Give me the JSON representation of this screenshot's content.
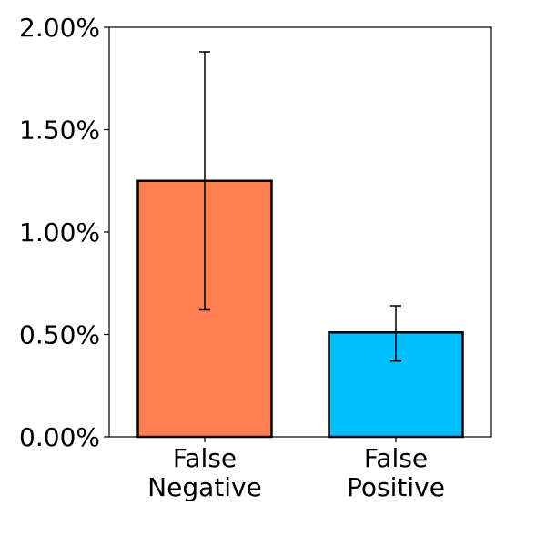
{
  "chart_data": {
    "type": "bar",
    "title": "",
    "xlabel": "",
    "ylabel": "",
    "ylim": [
      0,
      0.02
    ],
    "grid": false,
    "legend": "none",
    "categories": [
      {
        "lines": [
          "False",
          "Negative"
        ]
      },
      {
        "lines": [
          "False",
          "Positive"
        ]
      }
    ],
    "values": [
      0.0125,
      0.0051
    ],
    "error_low": [
      0.0062,
      0.0037
    ],
    "error_high": [
      0.0188,
      0.0064
    ],
    "colors": [
      "#ff7f50",
      "#00bfff"
    ],
    "yticks": [
      {
        "value": 0.0,
        "label": "0.00%"
      },
      {
        "value": 0.005,
        "label": "0.50%"
      },
      {
        "value": 0.01,
        "label": "1.00%"
      },
      {
        "value": 0.015,
        "label": "1.50%"
      },
      {
        "value": 0.02,
        "label": "2.00%"
      }
    ]
  }
}
